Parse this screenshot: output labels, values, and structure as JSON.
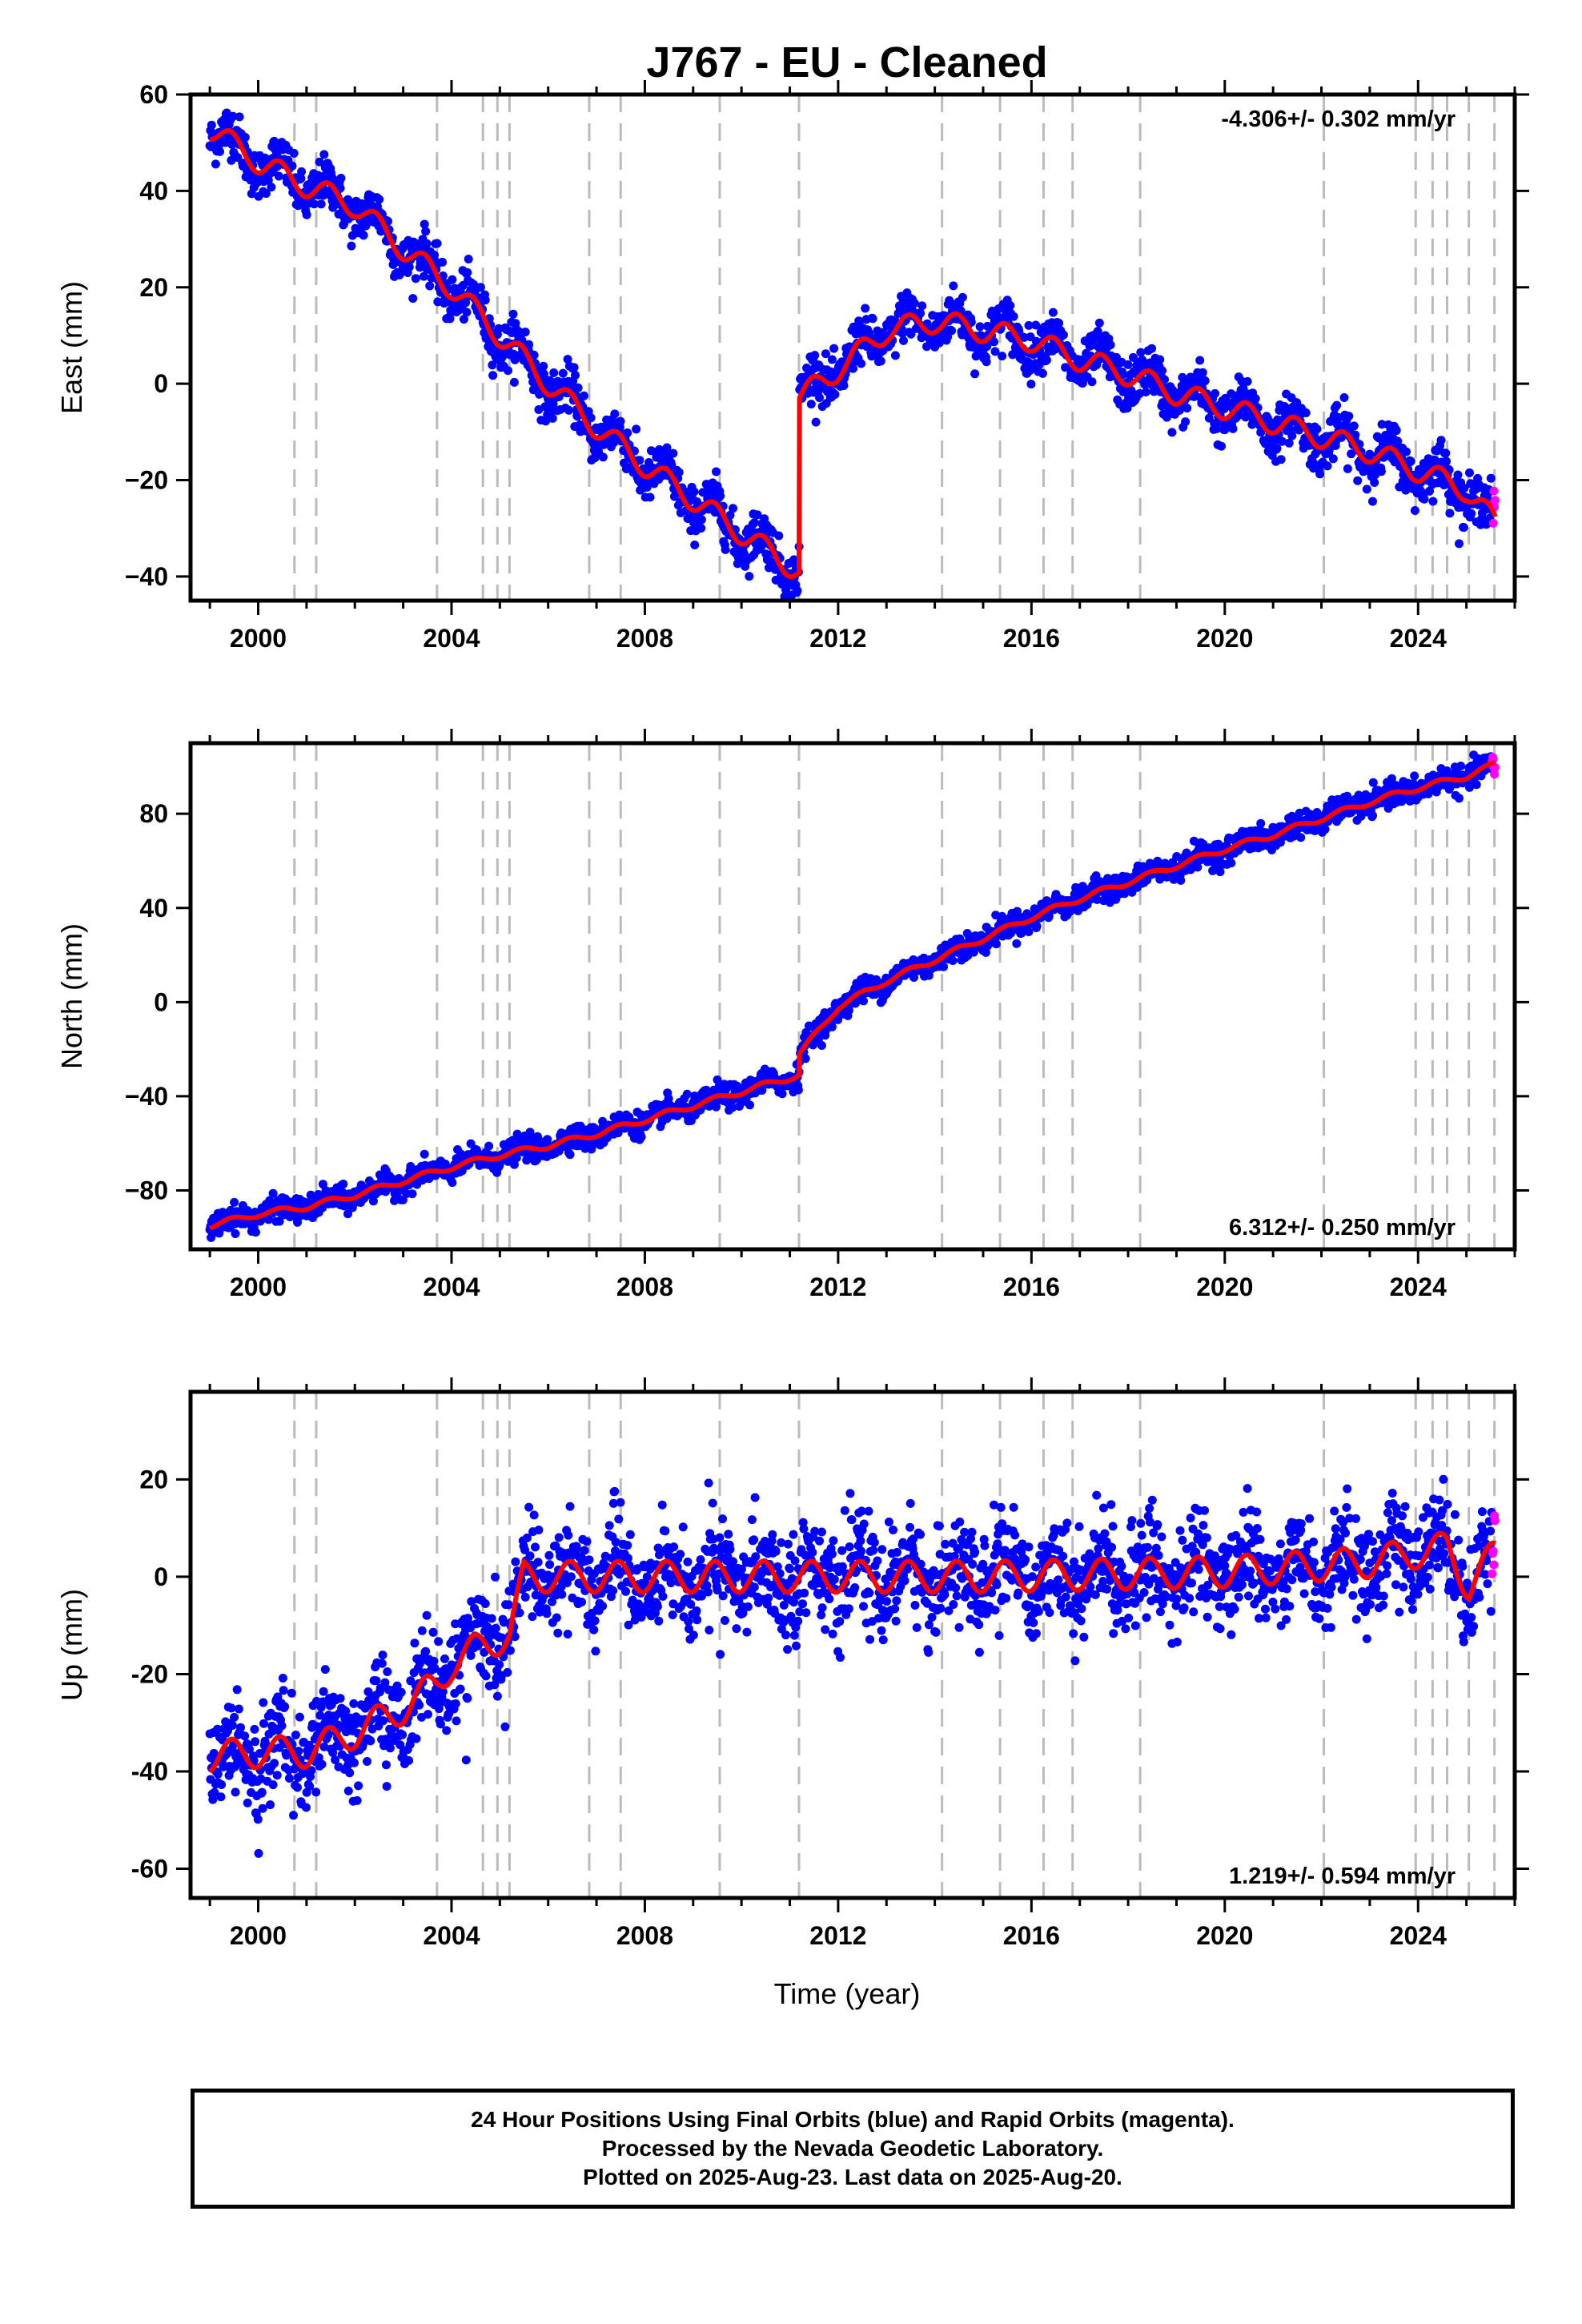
{
  "chart_data": {
    "type": "scatter",
    "title": "J767  - EU - Cleaned",
    "xlabel": "Time (year)",
    "xlim": [
      1998.6,
      2026.0
    ],
    "x_ticks": [
      2000,
      2004,
      2008,
      2012,
      2016,
      2020,
      2024
    ],
    "x_tick_labels": [
      "2000",
      "2004",
      "2008",
      "2012",
      "2016",
      "2020",
      "2024"
    ],
    "grid": false,
    "step_lines_x": [
      2000.75,
      2001.2,
      2003.7,
      2004.65,
      2004.95,
      2005.2,
      2006.85,
      2007.5,
      2009.55,
      2011.19,
      2014.15,
      2015.35,
      2016.25,
      2016.85,
      2018.25,
      2022.05,
      2023.95,
      2024.3,
      2024.6,
      2025.05,
      2025.58
    ],
    "series_legend": {
      "final_orbits_color": "#0000ff",
      "rapid_orbits_color": "#ff00ff",
      "model_color": "#ff0000",
      "step_line_color": "#bbbbbb"
    },
    "panels": [
      {
        "id": "east",
        "ylabel": "East (mm)",
        "ylim": [
          -45,
          60
        ],
        "y_ticks": [
          60,
          40,
          20,
          0,
          -20,
          -40
        ],
        "y_tick_labels": [
          "60",
          "40",
          "20",
          "0",
          "−20",
          "−40"
        ],
        "rate_text": "-4.306+/- 0.302 mm/yr",
        "rate_position": "top-right",
        "model_breakpoints": [
          {
            "x": 1999.0,
            "y": 53
          },
          {
            "x": 2000.0,
            "y": 46
          },
          {
            "x": 2001.0,
            "y": 41
          },
          {
            "x": 2002.0,
            "y": 37
          },
          {
            "x": 2003.0,
            "y": 28
          },
          {
            "x": 2004.0,
            "y": 20
          },
          {
            "x": 2005.0,
            "y": 10
          },
          {
            "x": 2006.0,
            "y": 0
          },
          {
            "x": 2007.0,
            "y": -9
          },
          {
            "x": 2008.0,
            "y": -17
          },
          {
            "x": 2009.0,
            "y": -24
          },
          {
            "x": 2010.0,
            "y": -31
          },
          {
            "x": 2011.19,
            "y": -39
          },
          {
            "x": 2011.2,
            "y": -3
          },
          {
            "x": 2012.0,
            "y": 3
          },
          {
            "x": 2013.0,
            "y": 11
          },
          {
            "x": 2014.0,
            "y": 13
          },
          {
            "x": 2015.0,
            "y": 11
          },
          {
            "x": 2016.0,
            "y": 9
          },
          {
            "x": 2017.0,
            "y": 5
          },
          {
            "x": 2018.0,
            "y": 2
          },
          {
            "x": 2019.0,
            "y": -2
          },
          {
            "x": 2020.0,
            "y": -5
          },
          {
            "x": 2021.0,
            "y": -8
          },
          {
            "x": 2022.0,
            "y": -11
          },
          {
            "x": 2023.0,
            "y": -14
          },
          {
            "x": 2024.0,
            "y": -18
          },
          {
            "x": 2025.0,
            "y": -22
          },
          {
            "x": 2025.6,
            "y": -29
          }
        ],
        "seasonal_amplitude": 3,
        "noise": 2.5
      },
      {
        "id": "north",
        "ylabel": "North (mm)",
        "ylim": [
          -105,
          110
        ],
        "y_ticks": [
          80,
          40,
          0,
          -40,
          -80
        ],
        "y_tick_labels": [
          "80",
          "40",
          "0",
          "−40",
          "−80"
        ],
        "rate_text": "6.312+/- 0.250 mm/yr",
        "rate_position": "bottom-right",
        "model_breakpoints": [
          {
            "x": 1999.0,
            "y": -95
          },
          {
            "x": 2000.0,
            "y": -90
          },
          {
            "x": 2001.0,
            "y": -87
          },
          {
            "x": 2002.0,
            "y": -82
          },
          {
            "x": 2003.0,
            "y": -76
          },
          {
            "x": 2004.0,
            "y": -70
          },
          {
            "x": 2005.0,
            "y": -65
          },
          {
            "x": 2006.0,
            "y": -61
          },
          {
            "x": 2007.0,
            "y": -56
          },
          {
            "x": 2008.0,
            "y": -50
          },
          {
            "x": 2009.0,
            "y": -44
          },
          {
            "x": 2010.0,
            "y": -38
          },
          {
            "x": 2011.19,
            "y": -31
          },
          {
            "x": 2011.2,
            "y": -22
          },
          {
            "x": 2012.0,
            "y": -2
          },
          {
            "x": 2013.0,
            "y": 9
          },
          {
            "x": 2014.0,
            "y": 18
          },
          {
            "x": 2015.0,
            "y": 27
          },
          {
            "x": 2016.0,
            "y": 36
          },
          {
            "x": 2017.0,
            "y": 44
          },
          {
            "x": 2018.0,
            "y": 51
          },
          {
            "x": 2019.0,
            "y": 58
          },
          {
            "x": 2020.0,
            "y": 65
          },
          {
            "x": 2021.0,
            "y": 71
          },
          {
            "x": 2022.0,
            "y": 78
          },
          {
            "x": 2023.0,
            "y": 85
          },
          {
            "x": 2024.0,
            "y": 91
          },
          {
            "x": 2025.0,
            "y": 96
          },
          {
            "x": 2025.6,
            "y": 101
          }
        ],
        "seasonal_amplitude": 1.5,
        "noise": 2.5
      },
      {
        "id": "up",
        "ylabel": "Up (mm)",
        "ylim": [
          -66,
          38
        ],
        "y_ticks": [
          20,
          0,
          -20,
          -40,
          -60
        ],
        "y_tick_labels": [
          "20",
          "0",
          "-20",
          "-40",
          "-60"
        ],
        "rate_text": "1.219+/- 0.594 mm/yr",
        "rate_position": "bottom-right",
        "model_breakpoints": [
          {
            "x": 1999.0,
            "y": -37
          },
          {
            "x": 2000.0,
            "y": -36
          },
          {
            "x": 2001.0,
            "y": -36
          },
          {
            "x": 2002.0,
            "y": -32
          },
          {
            "x": 2003.0,
            "y": -27
          },
          {
            "x": 2003.7,
            "y": -22
          },
          {
            "x": 2004.0,
            "y": -18
          },
          {
            "x": 2004.65,
            "y": -14
          },
          {
            "x": 2005.2,
            "y": -12
          },
          {
            "x": 2005.5,
            "y": 0
          },
          {
            "x": 2007.0,
            "y": 0
          },
          {
            "x": 2010.0,
            "y": 0
          },
          {
            "x": 2015.0,
            "y": 0
          },
          {
            "x": 2020.0,
            "y": 1
          },
          {
            "x": 2023.0,
            "y": 3
          },
          {
            "x": 2024.0,
            "y": 5
          },
          {
            "x": 2024.6,
            "y": 6
          },
          {
            "x": 2025.05,
            "y": -2
          },
          {
            "x": 2025.6,
            "y": 5
          }
        ],
        "seasonal_amplitude": 4,
        "noise": 5
      }
    ],
    "footer_lines": [
      "24 Hour Positions Using Final Orbits (blue) and Rapid Orbits (magenta).",
      "Processed by the Nevada Geodetic Laboratory.",
      "Plotted on 2025-Aug-23. Last data on 2025-Aug-20."
    ]
  }
}
